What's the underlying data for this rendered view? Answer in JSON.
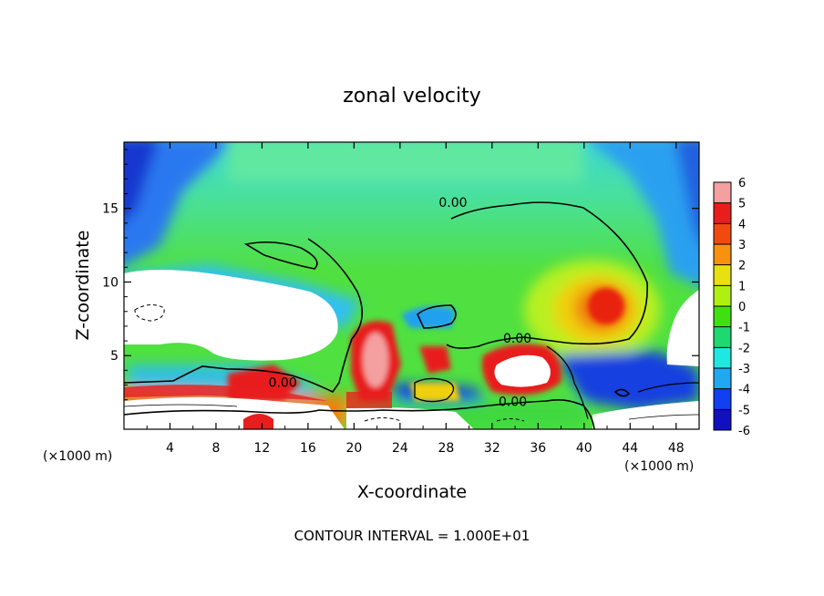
{
  "chart_data": {
    "type": "heatmap",
    "title": "zonal velocity",
    "xlabel": "X-coordinate",
    "ylabel": "Z-coordinate",
    "x_unit": "(×1000 m)",
    "z_unit": "(×1000 m)",
    "xlim": [
      0,
      50
    ],
    "ylim": [
      0,
      19.5
    ],
    "x_ticks": [
      4,
      8,
      12,
      16,
      20,
      24,
      28,
      32,
      36,
      40,
      44,
      48
    ],
    "y_ticks": [
      5,
      10,
      15
    ],
    "colorbar": {
      "levels": [
        6,
        5,
        4,
        3,
        2,
        1,
        0,
        -1,
        -2,
        -3,
        -4,
        -5,
        -6
      ],
      "colors": [
        "#f4a0a0",
        "#e81e1e",
        "#f04a10",
        "#f89010",
        "#e8e010",
        "#b0f010",
        "#40e010",
        "#20d870",
        "#20e8e0",
        "#20a8f0",
        "#1040f0",
        "#1010c0",
        "#600090"
      ]
    },
    "contour_labels": [
      "0.00",
      "0.00",
      "0.00",
      "0.00"
    ],
    "blank_color": "#ffffff",
    "features": [
      {
        "type": "jet",
        "x": 41.5,
        "z": 8.5,
        "value": 5
      },
      {
        "type": "jet",
        "x": 21.5,
        "z": 5.5,
        "value": 6
      },
      {
        "type": "jet",
        "x": 33.5,
        "z": 4.0,
        "value": 6
      },
      {
        "type": "jet",
        "x": 12,
        "z": 0.5,
        "value": 6
      },
      {
        "type": "undefined-region",
        "x": 6,
        "z": 8,
        "value": null
      },
      {
        "type": "undefined-region",
        "x": 48,
        "z": 7,
        "value": null
      }
    ]
  },
  "footnote": "CONTOUR INTERVAL = 1.000E+01"
}
